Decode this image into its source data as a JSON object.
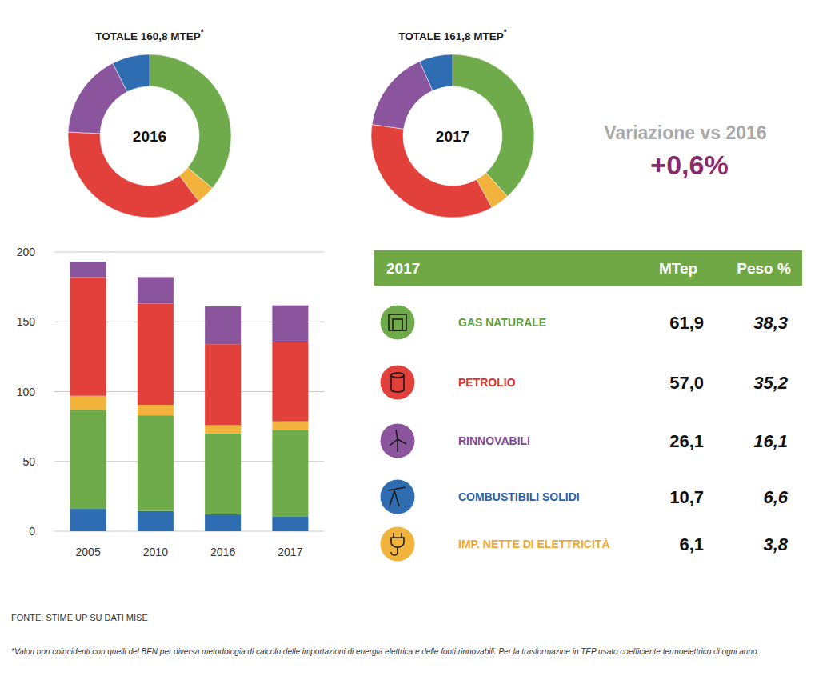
{
  "chart_data": [
    {
      "type": "pie",
      "title": "TOTALE 160,8 MTEP*",
      "annotation": "2016",
      "values": [
        58,
        6,
        58,
        27,
        12
      ],
      "colors": [
        "#6fab4a",
        "#f2b33d",
        "#e2403a",
        "#8b559e",
        "#2f6db2"
      ]
    },
    {
      "type": "pie",
      "title": "TOTALE 161,8 MTEP*",
      "annotation": "2017",
      "values": [
        61.9,
        6.1,
        57.0,
        26.1,
        10.7
      ],
      "colors": [
        "#6fab4a",
        "#f2b33d",
        "#e2403a",
        "#8b559e",
        "#2f6db2"
      ]
    },
    {
      "type": "bar",
      "stacked": true,
      "grid": true,
      "categories": [
        "2005",
        "2010",
        "2016",
        "2017"
      ],
      "ylim": [
        0,
        200
      ],
      "yticks": [
        0,
        50,
        100,
        150,
        200
      ],
      "series": [
        {
          "color": "#2f6db2",
          "values": [
            16,
            14.5,
            12,
            10.7
          ]
        },
        {
          "color": "#6fab4a",
          "values": [
            71,
            68.5,
            58,
            61.9
          ]
        },
        {
          "color": "#f2b33d",
          "values": [
            10,
            7.5,
            6,
            6.1
          ]
        },
        {
          "color": "#e2403a",
          "values": [
            85,
            72.5,
            58,
            57.0
          ]
        },
        {
          "color": "#8b559e",
          "values": [
            11,
            19,
            27,
            26.1
          ]
        }
      ]
    }
  ],
  "variation": {
    "label": "Variazione vs 2016",
    "value": "+0,6%"
  },
  "table": {
    "header": [
      "2017",
      "MTep",
      "Peso %"
    ],
    "rows": [
      [
        "GAS NATURALE",
        "61,9",
        "38,3"
      ],
      [
        "PETROLIO",
        "57,0",
        "35,2"
      ],
      [
        "RINNOVABILI",
        "26,1",
        "16,1"
      ],
      [
        "COMBUSTIBILI SOLIDI",
        "10,7",
        "6,6"
      ],
      [
        "IMP. NETTE DI ELETTRICITÀ",
        "6,1",
        "3,8"
      ]
    ],
    "colors": [
      "#6fab4a",
      "#e2403a",
      "#8b559e",
      "#2f6db2",
      "#f2b33d"
    ]
  },
  "source": "FONTE: STIME UP SU DATI MISE",
  "footnote": "*Valori non coincidenti con quelli del BEN per diversa metodologia di calcolo delle importazioni di energia elettrica e delle fonti rinnovabili. Per la trasformazine in TEP usato coefficiente termoelettrico di ogni anno."
}
